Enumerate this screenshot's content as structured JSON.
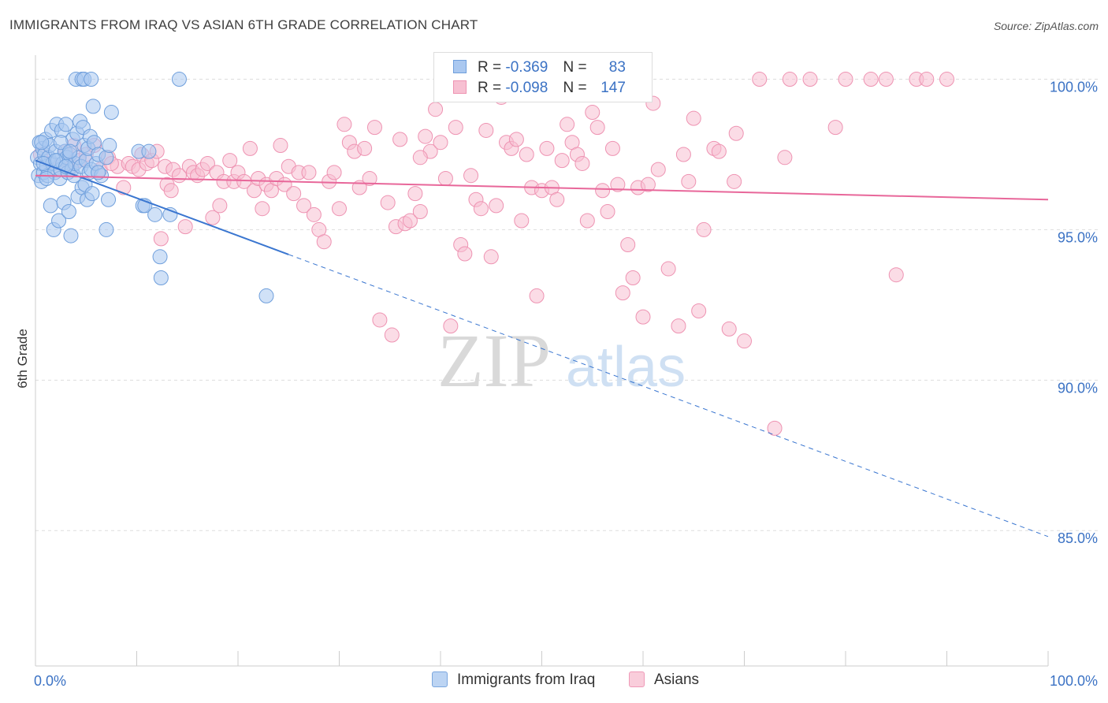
{
  "title": "IMMIGRANTS FROM IRAQ VS ASIAN 6TH GRADE CORRELATION CHART",
  "source": "Source: ZipAtlas.com",
  "watermark": {
    "zip": "ZIP",
    "atlas": "atlas"
  },
  "legend": {
    "rows": [
      {
        "r_label": "R =",
        "r_value": "-0.369",
        "n_label": "N =",
        "n_value": "83"
      },
      {
        "r_label": "R =",
        "r_value": "-0.098",
        "n_label": "N =",
        "n_value": "147"
      }
    ]
  },
  "colors": {
    "iraq_fill": "#aac8f0",
    "iraq_stroke": "#6f9fdc",
    "iraq_line": "#3a76d0",
    "asian_fill": "#f7c0d2",
    "asian_stroke": "#ee93b2",
    "asian_line": "#e8679a",
    "tick_label": "#3b72c4",
    "grid": "#dddddd"
  },
  "chart_data": {
    "type": "scatter",
    "title": "IMMIGRANTS FROM IRAQ VS ASIAN 6TH GRADE CORRELATION CHART",
    "xlabel": "",
    "ylabel": "6th Grade",
    "xlim": [
      0,
      100
    ],
    "ylim": [
      80.5,
      100.8
    ],
    "x_tick_labels": [
      "0.0%",
      "100.0%"
    ],
    "y_ticks": [
      {
        "value": 85,
        "label": "85.0%"
      },
      {
        "value": 90,
        "label": "90.0%"
      },
      {
        "value": 95,
        "label": "95.0%"
      },
      {
        "value": 100,
        "label": "100.0%"
      }
    ],
    "grid": true,
    "legend_position": "bottom",
    "series": [
      {
        "name": "Immigrants from Iraq",
        "R": -0.369,
        "N": 83,
        "trend": {
          "x_start": 0,
          "y_start": 97.3,
          "x_solid_end": 25,
          "x_end": 100,
          "y_end": 84.8
        },
        "points": [
          [
            0.2,
            97.4
          ],
          [
            0.3,
            96.8
          ],
          [
            0.4,
            97.9
          ],
          [
            0.5,
            97.2
          ],
          [
            0.6,
            96.6
          ],
          [
            0.7,
            97.7
          ],
          [
            0.8,
            96.9
          ],
          [
            0.9,
            97.5
          ],
          [
            1.0,
            98.0
          ],
          [
            1.1,
            97.1
          ],
          [
            1.2,
            96.8
          ],
          [
            1.3,
            97.4
          ],
          [
            1.4,
            97.8
          ],
          [
            1.5,
            95.8
          ],
          [
            1.6,
            98.3
          ],
          [
            1.7,
            97.2
          ],
          [
            1.8,
            95.0
          ],
          [
            1.9,
            96.9
          ],
          [
            2.0,
            97.6
          ],
          [
            2.1,
            98.5
          ],
          [
            2.2,
            97.3
          ],
          [
            2.3,
            95.3
          ],
          [
            2.4,
            96.7
          ],
          [
            2.5,
            97.0
          ],
          [
            2.6,
            98.3
          ],
          [
            2.7,
            97.2
          ],
          [
            2.8,
            95.9
          ],
          [
            2.9,
            97.6
          ],
          [
            3.0,
            98.5
          ],
          [
            3.1,
            97.4
          ],
          [
            3.2,
            96.9
          ],
          [
            3.3,
            95.6
          ],
          [
            3.4,
            97.5
          ],
          [
            3.5,
            94.8
          ],
          [
            3.6,
            97.0
          ],
          [
            3.7,
            98.0
          ],
          [
            3.8,
            96.8
          ],
          [
            3.9,
            97.2
          ],
          [
            4.0,
            100.0
          ],
          [
            4.1,
            98.2
          ],
          [
            4.2,
            96.1
          ],
          [
            4.3,
            97.4
          ],
          [
            4.4,
            98.6
          ],
          [
            4.5,
            97.1
          ],
          [
            4.6,
            96.4
          ],
          [
            4.7,
            98.4
          ],
          [
            4.8,
            97.8
          ],
          [
            4.9,
            96.5
          ],
          [
            5.0,
            97.3
          ],
          [
            5.1,
            96.0
          ],
          [
            5.2,
            97.7
          ],
          [
            5.3,
            96.9
          ],
          [
            5.4,
            98.1
          ],
          [
            5.5,
            97.0
          ],
          [
            5.6,
            96.2
          ],
          [
            5.8,
            97.9
          ],
          [
            6.0,
            97.2
          ],
          [
            6.2,
            97.5
          ],
          [
            6.5,
            96.8
          ],
          [
            7.0,
            97.4
          ],
          [
            7.3,
            97.8
          ],
          [
            0.6,
            97.9
          ],
          [
            0.8,
            97.2
          ],
          [
            1.1,
            96.7
          ],
          [
            2.0,
            97.3
          ],
          [
            2.5,
            97.9
          ],
          [
            3.0,
            97.1
          ],
          [
            3.4,
            97.6
          ],
          [
            4.6,
            100.0
          ],
          [
            4.8,
            100.0
          ],
          [
            5.5,
            100.0
          ],
          [
            5.7,
            99.1
          ],
          [
            6.2,
            96.9
          ],
          [
            7.0,
            95.0
          ],
          [
            7.2,
            96.0
          ],
          [
            7.5,
            98.9
          ],
          [
            10.2,
            97.6
          ],
          [
            10.6,
            95.8
          ],
          [
            10.8,
            95.8
          ],
          [
            11.2,
            97.6
          ],
          [
            11.8,
            95.5
          ],
          [
            12.3,
            94.1
          ],
          [
            12.4,
            93.4
          ],
          [
            13.3,
            95.5
          ],
          [
            14.2,
            100.0
          ],
          [
            22.8,
            92.8
          ]
        ]
      },
      {
        "name": "Asians",
        "R": -0.098,
        "N": 147,
        "trend": {
          "x_start": 0,
          "y_start": 96.8,
          "x_end": 100,
          "y_end": 96.0
        },
        "points": [
          [
            0.5,
            97.5
          ],
          [
            1.5,
            97.2
          ],
          [
            2.2,
            97.0
          ],
          [
            3.0,
            97.6
          ],
          [
            3.6,
            97.1
          ],
          [
            4.3,
            97.3
          ],
          [
            5.0,
            97.5
          ],
          [
            5.8,
            97.8
          ],
          [
            6.4,
            97.0
          ],
          [
            7.2,
            97.4
          ],
          [
            8.1,
            97.1
          ],
          [
            8.7,
            96.4
          ],
          [
            9.2,
            97.2
          ],
          [
            9.6,
            97.1
          ],
          [
            10.2,
            97.0
          ],
          [
            10.5,
            97.5
          ],
          [
            11.0,
            97.2
          ],
          [
            11.5,
            97.3
          ],
          [
            12.0,
            97.6
          ],
          [
            12.4,
            94.7
          ],
          [
            12.8,
            97.1
          ],
          [
            13.0,
            96.5
          ],
          [
            13.4,
            96.3
          ],
          [
            13.6,
            97.0
          ],
          [
            14.2,
            96.8
          ],
          [
            14.8,
            95.1
          ],
          [
            15.2,
            97.1
          ],
          [
            15.6,
            96.9
          ],
          [
            16.0,
            96.8
          ],
          [
            16.5,
            97.0
          ],
          [
            17.0,
            97.2
          ],
          [
            17.5,
            95.4
          ],
          [
            17.9,
            96.9
          ],
          [
            18.2,
            95.8
          ],
          [
            18.6,
            96.6
          ],
          [
            19.2,
            97.3
          ],
          [
            19.6,
            96.6
          ],
          [
            20.0,
            96.9
          ],
          [
            20.6,
            96.6
          ],
          [
            21.2,
            97.7
          ],
          [
            21.6,
            96.3
          ],
          [
            22.0,
            96.7
          ],
          [
            22.4,
            95.7
          ],
          [
            22.8,
            96.5
          ],
          [
            23.3,
            96.3
          ],
          [
            23.8,
            96.7
          ],
          [
            24.2,
            97.8
          ],
          [
            24.6,
            96.5
          ],
          [
            25.0,
            97.1
          ],
          [
            25.5,
            96.2
          ],
          [
            26.0,
            96.9
          ],
          [
            26.5,
            95.8
          ],
          [
            27.0,
            96.9
          ],
          [
            27.5,
            95.5
          ],
          [
            28.0,
            95.0
          ],
          [
            28.5,
            94.6
          ],
          [
            29.0,
            96.6
          ],
          [
            29.5,
            96.9
          ],
          [
            30.0,
            95.7
          ],
          [
            30.5,
            98.5
          ],
          [
            31.0,
            97.9
          ],
          [
            31.5,
            97.6
          ],
          [
            32.0,
            96.4
          ],
          [
            32.5,
            97.7
          ],
          [
            33.0,
            96.7
          ],
          [
            34.0,
            92.0
          ],
          [
            34.8,
            95.9
          ],
          [
            35.2,
            91.5
          ],
          [
            35.6,
            95.1
          ],
          [
            36.0,
            98.0
          ],
          [
            36.5,
            95.2
          ],
          [
            37.0,
            95.3
          ],
          [
            37.5,
            96.2
          ],
          [
            38.0,
            95.6
          ],
          [
            38.5,
            98.1
          ],
          [
            39.0,
            97.6
          ],
          [
            39.5,
            99.0
          ],
          [
            40.0,
            97.9
          ],
          [
            40.5,
            96.7
          ],
          [
            41.0,
            91.8
          ],
          [
            41.5,
            98.4
          ],
          [
            42.0,
            94.5
          ],
          [
            42.4,
            94.2
          ],
          [
            43.0,
            96.8
          ],
          [
            43.5,
            96.0
          ],
          [
            44.0,
            95.7
          ],
          [
            44.5,
            98.3
          ],
          [
            45.0,
            94.1
          ],
          [
            45.5,
            95.8
          ],
          [
            46.0,
            99.4
          ],
          [
            46.5,
            97.9
          ],
          [
            47.0,
            97.7
          ],
          [
            47.5,
            98.0
          ],
          [
            48.0,
            95.3
          ],
          [
            48.5,
            97.5
          ],
          [
            49.0,
            96.4
          ],
          [
            49.5,
            92.8
          ],
          [
            50.0,
            96.3
          ],
          [
            50.5,
            97.7
          ],
          [
            51.0,
            96.4
          ],
          [
            51.5,
            96.0
          ],
          [
            52.0,
            97.3
          ],
          [
            52.5,
            98.5
          ],
          [
            53.0,
            97.9
          ],
          [
            53.5,
            97.5
          ],
          [
            54.0,
            97.2
          ],
          [
            54.5,
            95.3
          ],
          [
            55.0,
            98.9
          ],
          [
            55.5,
            98.4
          ],
          [
            56.0,
            96.3
          ],
          [
            56.5,
            95.6
          ],
          [
            57.0,
            97.7
          ],
          [
            57.5,
            96.5
          ],
          [
            58.0,
            92.9
          ],
          [
            58.5,
            94.5
          ],
          [
            59.0,
            93.4
          ],
          [
            59.5,
            96.4
          ],
          [
            60.0,
            92.1
          ],
          [
            60.5,
            96.5
          ],
          [
            61.0,
            99.2
          ],
          [
            61.5,
            97.0
          ],
          [
            62.5,
            93.7
          ],
          [
            63.5,
            91.8
          ],
          [
            64.0,
            97.5
          ],
          [
            64.5,
            96.6
          ],
          [
            65.0,
            98.7
          ],
          [
            65.5,
            92.3
          ],
          [
            66.0,
            95.0
          ],
          [
            67.0,
            97.7
          ],
          [
            67.5,
            97.6
          ],
          [
            68.5,
            91.7
          ],
          [
            69.0,
            96.6
          ],
          [
            69.2,
            98.2
          ],
          [
            70.0,
            91.3
          ],
          [
            71.5,
            100.0
          ],
          [
            73.0,
            88.4
          ],
          [
            74.0,
            97.4
          ],
          [
            74.5,
            100.0
          ],
          [
            76.5,
            100.0
          ],
          [
            79.0,
            98.4
          ],
          [
            80.0,
            100.0
          ],
          [
            82.5,
            100.0
          ],
          [
            84.0,
            100.0
          ],
          [
            85.0,
            93.5
          ],
          [
            87.0,
            100.0
          ],
          [
            88.0,
            100.0
          ],
          [
            90.0,
            100.0
          ],
          [
            33.5,
            98.4
          ],
          [
            38.0,
            97.4
          ],
          [
            3.8,
            97.8
          ],
          [
            7.5,
            97.2
          ]
        ]
      }
    ]
  }
}
